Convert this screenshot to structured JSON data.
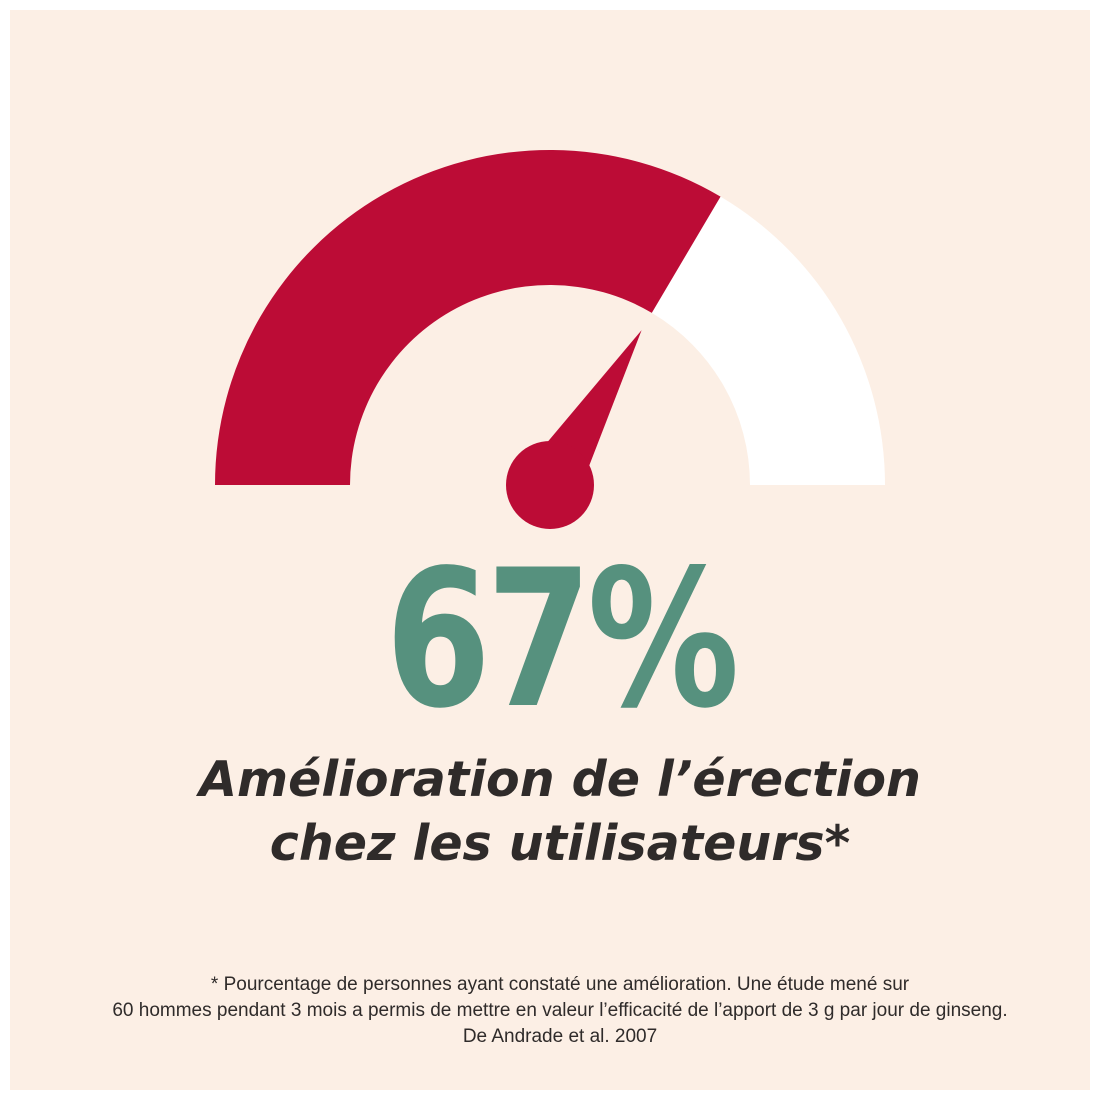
{
  "colors": {
    "background": "#fcefe5",
    "gauge_fill": "#bc0c36",
    "gauge_track": "#ffffff",
    "value": "#56917e",
    "text": "#2f2b2a"
  },
  "gauge": {
    "value_percent": 67
  },
  "stat": {
    "value": "67%"
  },
  "headline": {
    "line1": "Amélioration de l’érection",
    "line2": "chez les utilisateurs*"
  },
  "footnote": {
    "line1": "* Pourcentage de personnes ayant constaté une amélioration. Une étude mené sur",
    "line2": "60 hommes pendant 3 mois a permis de mettre en valeur l’efficacité de l’apport de 3 g par jour de ginseng.",
    "line3": "De Andrade et al. 2007"
  }
}
